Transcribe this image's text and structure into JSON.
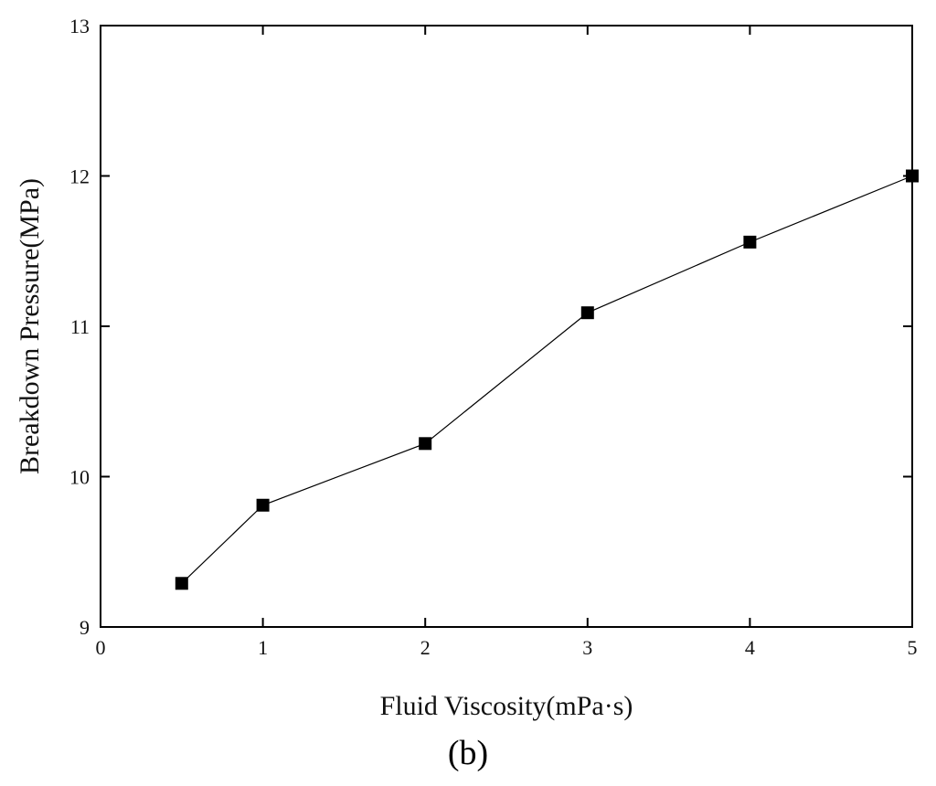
{
  "chart_data": {
    "type": "line",
    "panel_label": "(b)",
    "xlabel": "Fluid Viscosity(mPa·s)",
    "ylabel": "Breakdown Pressure(MPa)",
    "xlim": [
      0,
      5
    ],
    "ylim": [
      9,
      13
    ],
    "x_ticks": [
      0,
      1,
      2,
      3,
      4,
      5
    ],
    "y_ticks": [
      9,
      10,
      11,
      12,
      13
    ],
    "grid": false,
    "marker": "square",
    "line_color": "#000000",
    "marker_color": "#000000",
    "series": [
      {
        "x": [
          0.5,
          1,
          2,
          3,
          4,
          5
        ],
        "y": [
          9.29,
          9.81,
          10.22,
          11.09,
          11.56,
          12.0
        ]
      }
    ]
  }
}
